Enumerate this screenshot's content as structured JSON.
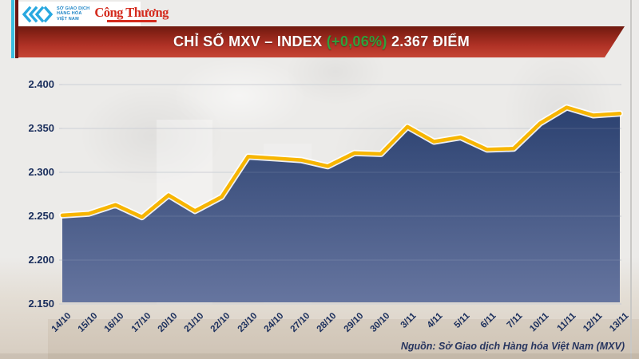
{
  "header": {
    "mxv_logo": {
      "org_line1": "SỞ GIAO DỊCH",
      "org_line2": "HÀNG HÓA",
      "org_line3": "VIỆT NAM"
    },
    "newspaper_logo": "Công Thương",
    "banner": {
      "title": "CHỈ SỐ MXV – INDEX",
      "change": "(+0,06%)",
      "value_label": "2.367 ĐIỂM"
    }
  },
  "footer": {
    "source": "Nguồn: Sở Giao dịch Hàng hóa Việt Nam (MXV)"
  },
  "colors": {
    "banner_red": "#b03226",
    "change_green": "#30a03c",
    "line_yellow": "#f7b500",
    "fill_navy_top": "#2b4170",
    "fill_navy_bottom": "#66759f",
    "axis_text": "#1a2e5c",
    "gridline": "#c6cad1",
    "logo_blue": "#29a8e0",
    "logo_red": "#d42b1e",
    "stripe_cyan": "#3bbde0",
    "stripe_maroon": "#6e1511"
  },
  "chart_data": {
    "type": "area",
    "title": "CHỈ SỐ MXV – INDEX (+0,06%) 2.367 ĐIỂM",
    "categories": [
      "14/10",
      "15/10",
      "16/10",
      "17/10",
      "20/10",
      "21/10",
      "22/10",
      "23/10",
      "24/10",
      "27/10",
      "28/10",
      "29/10",
      "30/10",
      "3/11",
      "4/11",
      "5/11",
      "6/11",
      "7/11",
      "10/11",
      "11/11",
      "12/11",
      "13/11"
    ],
    "values": [
      2251,
      2253,
      2263,
      2249,
      2274,
      2256,
      2272,
      2318,
      2316,
      2314,
      2307,
      2322,
      2321,
      2352,
      2335,
      2340,
      2326,
      2327,
      2356,
      2374,
      2365,
      2367
    ],
    "xlabel": "",
    "ylabel": "",
    "ylim": [
      2150,
      2400
    ],
    "yticks": [
      {
        "value": 2400,
        "label": "2.400"
      },
      {
        "value": 2350,
        "label": "2.350"
      },
      {
        "value": 2300,
        "label": "2.300"
      },
      {
        "value": 2250,
        "label": "2.250"
      },
      {
        "value": 2200,
        "label": "2.200"
      },
      {
        "value": 2150,
        "label": "2.150"
      }
    ],
    "grid": true,
    "legend": false,
    "last_point_label": "2.367",
    "last_point_change_pct": "+0,06%"
  }
}
